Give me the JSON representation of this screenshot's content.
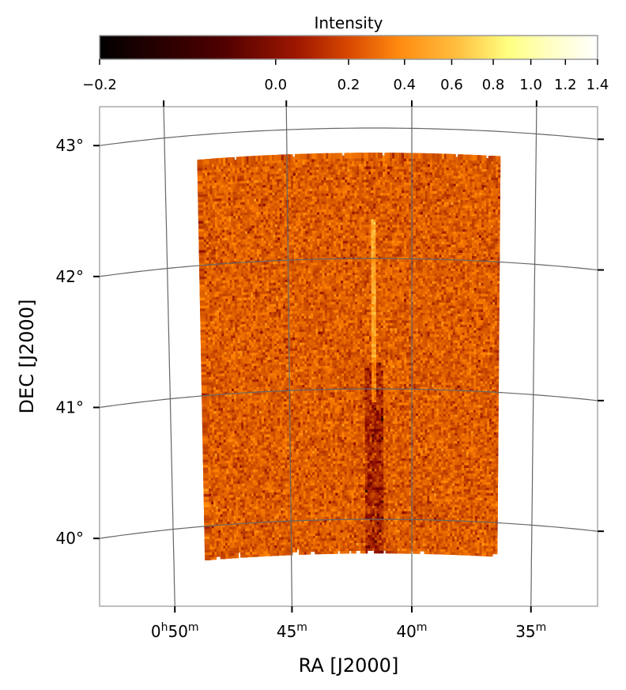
{
  "chart_data": {
    "type": "heatmap",
    "xlabel": "RA [J2000]",
    "ylabel": "DEC [J2000]",
    "colorbar": {
      "label": "Intensity",
      "range": [
        -0.2,
        1.4
      ],
      "ticks": [
        "−0.2",
        "0.0",
        "0.2",
        "0.4",
        "0.6",
        "0.8",
        "1.0",
        "1.2",
        "1.4"
      ],
      "tick_values": [
        -0.2,
        0.0,
        0.2,
        0.4,
        0.6,
        0.8,
        1.0,
        1.2,
        1.4
      ],
      "power_stretch": 0.5,
      "colormap": "afmhot",
      "colormap_stops": [
        "#000000",
        "#800000",
        "#ff8000",
        "#ffff80",
        "#ffffff"
      ]
    },
    "ra_ticks": [
      {
        "value_min": 50,
        "h": "0",
        "m": "50",
        "label_h": "h",
        "label_m": "m"
      },
      {
        "value_min": 45,
        "h": "",
        "m": "45",
        "label_h": "",
        "label_m": "m"
      },
      {
        "value_min": 40,
        "h": "",
        "m": "40",
        "label_h": "",
        "label_m": "m"
      },
      {
        "value_min": 35,
        "h": "",
        "m": "35",
        "label_h": "",
        "label_m": "m"
      }
    ],
    "dec_ticks": [
      {
        "value": 43,
        "label": "43°"
      },
      {
        "value": 42,
        "label": "42°"
      },
      {
        "value": 41,
        "label": "41°"
      },
      {
        "value": 40,
        "label": "40°"
      }
    ],
    "grid": true,
    "map": {
      "dec_range": [
        39.75,
        42.8
      ],
      "ra_range_min": [
        36.5,
        48.6
      ],
      "typical_intensity": [
        -0.1,
        0.35
      ],
      "feature": "bright vertical streak near RA 0h41.5m, DEC 40–42°"
    }
  }
}
